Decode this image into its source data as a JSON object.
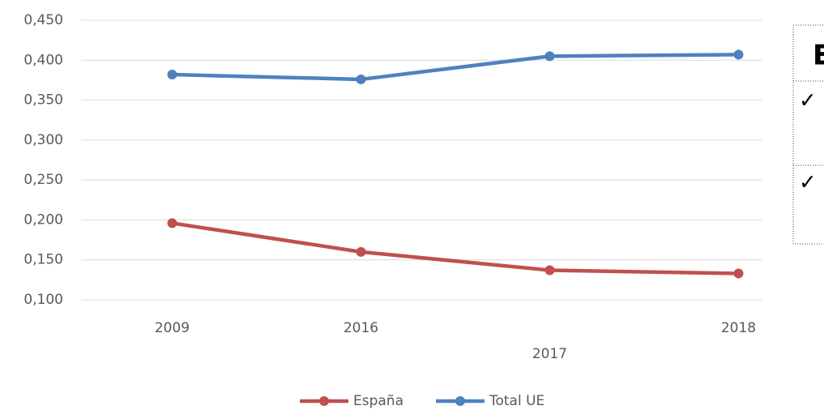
{
  "chart_data": {
    "type": "line",
    "categories": [
      "2009",
      "2016",
      "2017",
      "2018"
    ],
    "series": [
      {
        "name": "España",
        "color": "#c0504d",
        "values": [
          0.196,
          0.16,
          0.137,
          0.133
        ]
      },
      {
        "name": "Total UE",
        "color": "#4f81bd",
        "values": [
          0.382,
          0.376,
          0.405,
          0.407
        ]
      }
    ],
    "ylim": [
      0.1,
      0.45
    ],
    "yticks": [
      {
        "value": 0.1,
        "label": "0,100"
      },
      {
        "value": 0.15,
        "label": "0,150"
      },
      {
        "value": 0.2,
        "label": "0,200"
      },
      {
        "value": 0.25,
        "label": "0,250"
      },
      {
        "value": 0.3,
        "label": "0,300"
      },
      {
        "value": 0.35,
        "label": "0,350"
      },
      {
        "value": 0.4,
        "label": "0,400"
      },
      {
        "value": 0.45,
        "label": "0,450"
      }
    ],
    "grid": true,
    "legend": "bottom"
  },
  "side_panel": {
    "heading": "E",
    "items": [
      "✓",
      "✓"
    ]
  }
}
